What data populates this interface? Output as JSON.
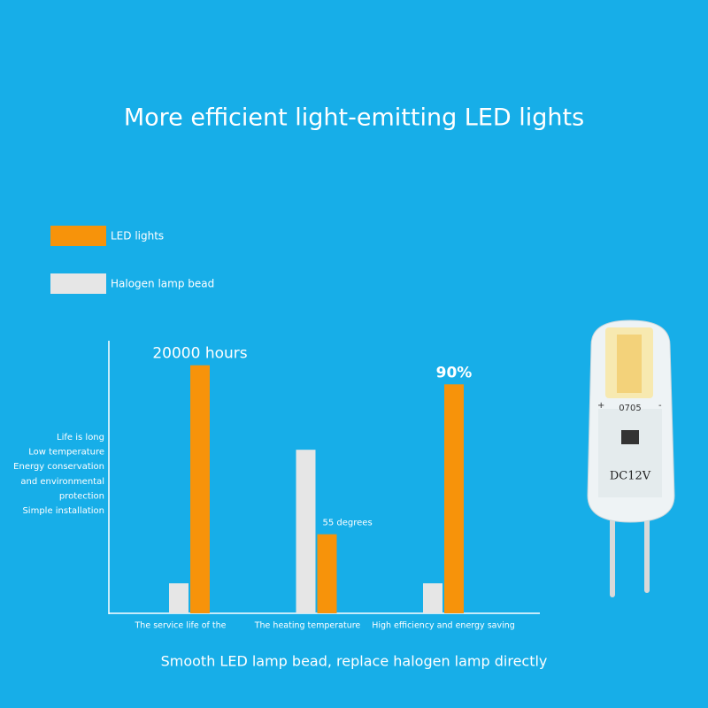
{
  "chart_data": {
    "type": "bar",
    "title": "More efficient light-emitting LED lights",
    "subtitle": "Smooth LED lamp bead, replace halogen lamp directly",
    "categories": [
      "The service life of the",
      "The heating temperature",
      "High efficiency and energy saving"
    ],
    "series": [
      {
        "name": "Halogen lamp bead",
        "color": "#e6e6e6",
        "values": [
          11,
          60,
          11
        ]
      },
      {
        "name": "LED lights",
        "color": "#f7930a",
        "values": [
          91,
          29,
          84
        ]
      }
    ],
    "legend_order": [
      "LED lights",
      "Halogen lamp bead"
    ],
    "ylim": [
      0,
      100
    ],
    "annotations": [
      "20000 hours",
      "55 degrees",
      "90%"
    ],
    "side_notes": [
      "Life is long",
      "Low temperature",
      "Energy conservation",
      "and environmental",
      "protection",
      "Simple installation"
    ],
    "product_markings": [
      "0705",
      "DC12V"
    ]
  }
}
